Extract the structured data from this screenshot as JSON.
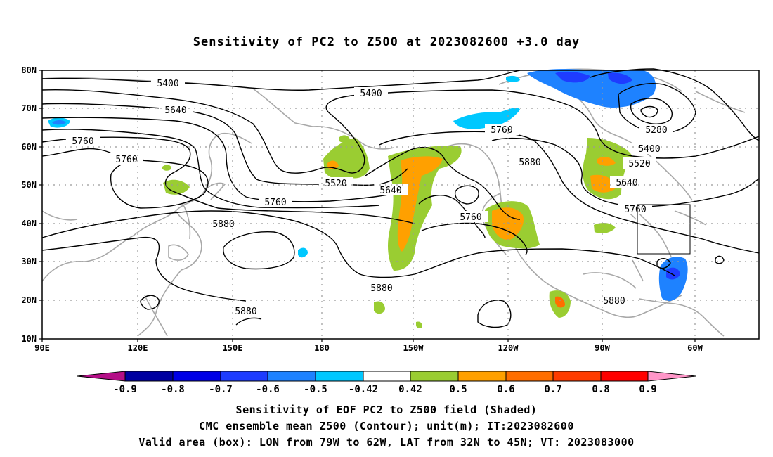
{
  "title": "Sensitivity of PC2 to Z500 at 2023082600 +3.0 day",
  "lat_labels": [
    "80N",
    "70N",
    "60N",
    "50N",
    "40N",
    "30N",
    "20N",
    "10N"
  ],
  "lon_labels": [
    "90E",
    "120E",
    "150E",
    "180",
    "150W",
    "120W",
    "90W",
    "60W"
  ],
  "contour_labels": [
    "5400",
    "5400",
    "5640",
    "5760",
    "5760",
    "5520",
    "5640",
    "5760",
    "5880",
    "5760",
    "5760",
    "5880",
    "5280",
    "5400",
    "5520",
    "5640",
    "5760",
    "5880",
    "5880",
    "5880"
  ],
  "colorbar": {
    "labels": [
      "-0.9",
      "-0.8",
      "-0.7",
      "-0.6",
      "-0.5",
      "-0.42",
      "0.42",
      "0.5",
      "0.6",
      "0.7",
      "0.8",
      "0.9"
    ],
    "colors": [
      "#b40f87",
      "#0000a0",
      "#0000e6",
      "#1e3cff",
      "#1e82ff",
      "#00c8ff",
      "#ffffff",
      "#9acd32",
      "#ffa000",
      "#ff6e00",
      "#ff3c00",
      "#ff0000",
      "#ff96c8"
    ]
  },
  "box": {
    "lon_min": -79,
    "lon_max": -62,
    "lat_min": 32,
    "lat_max": 45
  },
  "caption": {
    "line1": "Sensitivity of EOF PC2 to Z500 field (Shaded)",
    "line2": "CMC ensemble mean Z500 (Contour); unit(m); IT:2023082600",
    "line3": "Valid area (box): LON from 79W to 62W, LAT from 32N to 45N; VT: 2023083000"
  }
}
